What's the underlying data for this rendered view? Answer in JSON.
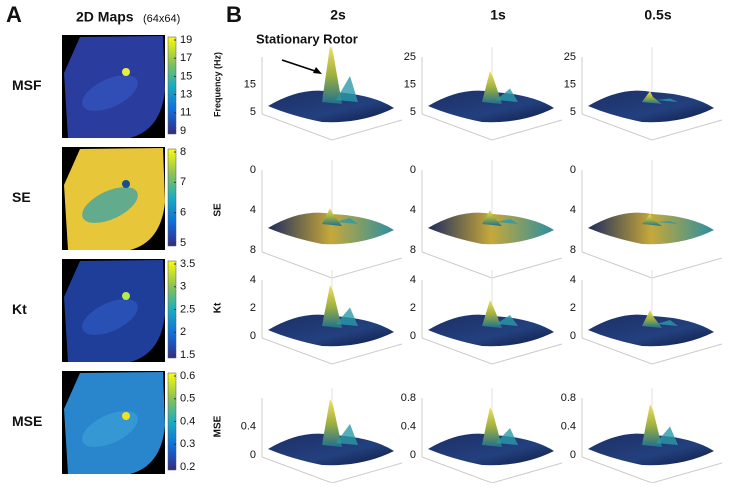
{
  "panel_a": {
    "label": "A",
    "title": "2D Maps",
    "title_note": "(64x64)",
    "maps": [
      {
        "label": "MSF",
        "colorbar_ticks": [
          19,
          17,
          15,
          13,
          11,
          9
        ]
      },
      {
        "label": "SE",
        "colorbar_ticks": [
          8,
          7,
          6,
          5
        ]
      },
      {
        "label": "Kt",
        "colorbar_ticks": [
          3.5,
          3,
          2.5,
          2,
          1.5
        ]
      },
      {
        "label": "MSE",
        "colorbar_ticks": [
          0.6,
          0.5,
          0.4,
          0.3,
          0.2
        ]
      }
    ]
  },
  "panel_b": {
    "label": "B",
    "columns": [
      "2s",
      "1s",
      "0.5s"
    ],
    "annotation": "Stationary Rotor",
    "rows": [
      {
        "label": "Frequency (Hz)",
        "axis_ticks": [
          [
            15,
            5
          ],
          [
            25,
            15,
            5
          ],
          [
            25,
            15,
            5
          ]
        ]
      },
      {
        "label": "SE",
        "axis_ticks": [
          [
            0,
            4,
            8
          ],
          [
            0,
            4,
            8
          ],
          [
            0,
            4,
            8
          ]
        ]
      },
      {
        "label": "Kt",
        "axis_ticks": [
          [
            4,
            2,
            0
          ],
          [
            4,
            2,
            0
          ],
          [
            4,
            2,
            0
          ]
        ]
      },
      {
        "label": "MSE",
        "axis_ticks": [
          [
            0.4,
            0
          ],
          [
            0.8,
            0.4,
            0
          ],
          [
            0.8,
            0.4,
            0
          ]
        ]
      }
    ]
  }
}
